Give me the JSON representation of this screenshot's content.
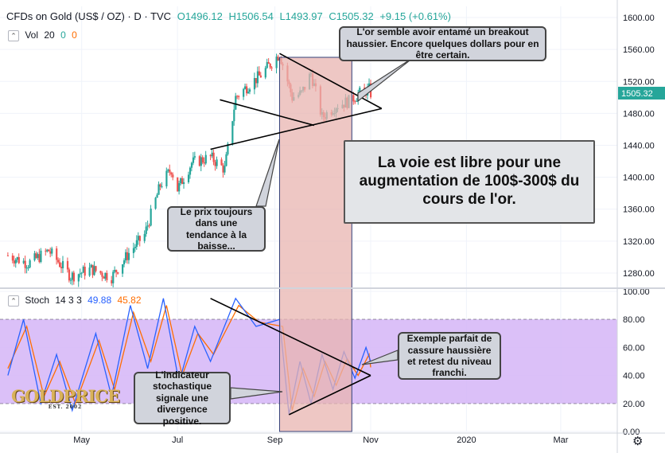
{
  "header": {
    "title": "CFDs on Gold (US$ / OZ) · D · TVC",
    "open": "O1496.12",
    "high": "H1506.54",
    "low": "L1493.97",
    "close": "C1505.32",
    "change": "+9.15 (+0.61%)",
    "vol_label": "Vol",
    "vol_params": "20",
    "vol_v1": "0",
    "vol_v2": "0",
    "stoch_label": "Stoch",
    "stoch_params": "14 3 3",
    "stoch_k": "49.88",
    "stoch_d": "45.82"
  },
  "price_axis": {
    "ticks": [
      "1600.00",
      "1560.00",
      "1520.00",
      "1480.00",
      "1440.00",
      "1400.00",
      "1360.00",
      "1320.00",
      "1280.00"
    ],
    "last_price": "1505.32"
  },
  "stoch_axis": {
    "ticks": [
      "100.00",
      "80.00",
      "60.00",
      "40.00",
      "20.00",
      "0.00"
    ]
  },
  "time_axis": {
    "labels": [
      "May",
      "Jul",
      "Sep",
      "Nov",
      "2020",
      "Mar"
    ]
  },
  "annotations": {
    "breakout": "L'or semble avoir entamé un breakout haussier. Encore quelques dollars pour en être certain.",
    "main": "La voie est libre pour une augmentation de 100$-300$ du cours de l'or.",
    "downtrend": "Le prix toujours dans une tendance à la baisse...",
    "divergence": "L'indicateur stochastique signale une divergence positive.",
    "retest": "Exemple parfait de cassure haussière et retest du niveau franchi."
  },
  "logo": {
    "text": "GOLDPRICE",
    "sub": "EST. 2002"
  },
  "colors": {
    "up": "#26a69a",
    "down": "#ef5350",
    "k_line": "#2962ff",
    "d_line": "#ff6d00",
    "band": "#d5b5f7",
    "highlight": "#e8b4b0"
  },
  "chart_data": {
    "type": "candlestick",
    "title": "CFDs on Gold (US$ / OZ) · D · TVC",
    "price_ylim": [
      1264,
      1614
    ],
    "stoch_ylim": [
      0,
      100
    ],
    "stoch_band": [
      20,
      80
    ],
    "price_anchors": [
      [
        "2019-03-15",
        1302
      ],
      [
        "2019-03-28",
        1292
      ],
      [
        "2019-04-10",
        1308
      ],
      [
        "2019-04-24",
        1276
      ],
      [
        "2019-05-07",
        1285
      ],
      [
        "2019-05-20",
        1275
      ],
      [
        "2019-05-31",
        1305
      ],
      [
        "2019-06-10",
        1328
      ],
      [
        "2019-06-20",
        1390
      ],
      [
        "2019-06-27",
        1410
      ],
      [
        "2019-07-01",
        1385
      ],
      [
        "2019-07-10",
        1418
      ],
      [
        "2019-07-22",
        1425
      ],
      [
        "2019-07-31",
        1410
      ],
      [
        "2019-08-07",
        1500
      ],
      [
        "2019-08-15",
        1515
      ],
      [
        "2019-08-23",
        1528
      ],
      [
        "2019-09-04",
        1555
      ],
      [
        "2019-09-12",
        1500
      ],
      [
        "2019-09-18",
        1505
      ],
      [
        "2019-09-24",
        1530
      ],
      [
        "2019-10-01",
        1475
      ],
      [
        "2019-10-10",
        1490
      ],
      [
        "2019-10-18",
        1495
      ],
      [
        "2019-10-25",
        1505
      ],
      [
        "2019-10-31",
        1510
      ],
      [
        "2019-11-01",
        1505.32
      ]
    ],
    "stoch_k": [
      [
        "2019-03-15",
        40
      ],
      [
        "2019-03-25",
        80
      ],
      [
        "2019-04-05",
        20
      ],
      [
        "2019-04-15",
        55
      ],
      [
        "2019-04-25",
        15
      ],
      [
        "2019-05-10",
        70
      ],
      [
        "2019-05-20",
        25
      ],
      [
        "2019-06-01",
        90
      ],
      [
        "2019-06-12",
        45
      ],
      [
        "2019-06-22",
        95
      ],
      [
        "2019-07-02",
        35
      ],
      [
        "2019-07-12",
        75
      ],
      [
        "2019-07-22",
        50
      ],
      [
        "2019-08-07",
        95
      ],
      [
        "2019-08-20",
        75
      ],
      [
        "2019-09-04",
        80
      ],
      [
        "2019-09-10",
        12
      ],
      [
        "2019-09-17",
        50
      ],
      [
        "2019-09-24",
        20
      ],
      [
        "2019-10-01",
        55
      ],
      [
        "2019-10-08",
        30
      ],
      [
        "2019-10-15",
        57
      ],
      [
        "2019-10-22",
        38
      ],
      [
        "2019-10-29",
        60
      ],
      [
        "2019-11-01",
        49.88
      ]
    ],
    "stoch_d": [
      [
        "2019-03-15",
        45
      ],
      [
        "2019-03-27",
        75
      ],
      [
        "2019-04-07",
        25
      ],
      [
        "2019-04-17",
        50
      ],
      [
        "2019-04-27",
        20
      ],
      [
        "2019-05-12",
        65
      ],
      [
        "2019-05-22",
        30
      ],
      [
        "2019-06-03",
        85
      ],
      [
        "2019-06-14",
        50
      ],
      [
        "2019-06-24",
        90
      ],
      [
        "2019-07-04",
        40
      ],
      [
        "2019-07-14",
        70
      ],
      [
        "2019-07-24",
        55
      ],
      [
        "2019-08-09",
        90
      ],
      [
        "2019-08-22",
        78
      ],
      [
        "2019-09-06",
        75
      ],
      [
        "2019-09-12",
        15
      ],
      [
        "2019-09-19",
        45
      ],
      [
        "2019-09-26",
        25
      ],
      [
        "2019-10-03",
        50
      ],
      [
        "2019-10-10",
        33
      ],
      [
        "2019-10-17",
        52
      ],
      [
        "2019-10-24",
        40
      ],
      [
        "2019-10-31",
        55
      ],
      [
        "2019-11-01",
        45.82
      ]
    ],
    "triangle_price": {
      "apex": [
        "2019-11-08",
        1486
      ],
      "upper_start": [
        "2019-09-04",
        1555
      ],
      "lower_start": [
        "2019-07-22",
        1435
      ]
    },
    "highlight_range": [
      "2019-09-04",
      "2019-10-20"
    ]
  }
}
